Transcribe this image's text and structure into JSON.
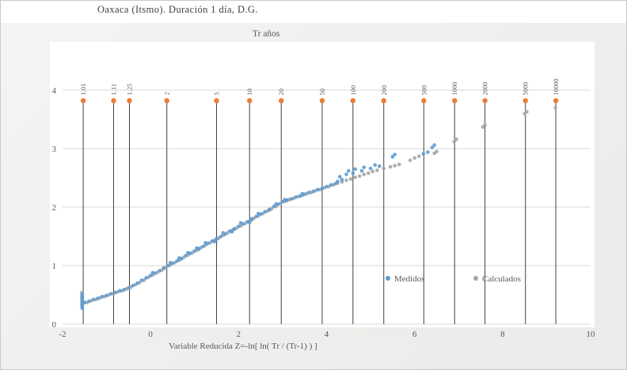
{
  "chart_data": {
    "type": "scatter",
    "title": "Oaxaca (Itsmo). Duración 1 día, D.G.",
    "top_axis_title": "Tr años",
    "xlabel": "Variable Reducida  Z=-ln[ ln( Tr / (Tr-1) ) ]",
    "ylabel": "",
    "xlim": [
      -2,
      10
    ],
    "ylim": [
      0,
      4
    ],
    "x_ticks": [
      -2,
      0,
      2,
      4,
      6,
      8,
      10
    ],
    "y_ticks": [
      0,
      1,
      2,
      3,
      4
    ],
    "grid": "horizontal",
    "legend_position": "inside-lower-right",
    "colors": {
      "medidos": "#5b9bd5",
      "calculados": "#a5a5a5",
      "tr_marker": "#ed7d31",
      "tr_line": "#404040",
      "grid": "#d9d9d9",
      "tick_text": "#595959",
      "plot_bg": "#ffffff"
    },
    "tr_marker_y": 3.82,
    "tr_lines": [
      {
        "label": "1.01",
        "z": -1.53
      },
      {
        "label": "1.11",
        "z": -0.84
      },
      {
        "label": "1.25",
        "z": -0.48
      },
      {
        "label": "2",
        "z": 0.37
      },
      {
        "label": "5",
        "z": 1.5
      },
      {
        "label": "10",
        "z": 2.25
      },
      {
        "label": "20",
        "z": 2.97
      },
      {
        "label": "50",
        "z": 3.9
      },
      {
        "label": "100",
        "z": 4.6
      },
      {
        "label": "200",
        "z": 5.3
      },
      {
        "label": "500",
        "z": 6.21
      },
      {
        "label": "1000",
        "z": 6.91
      },
      {
        "label": "2000",
        "z": 7.6
      },
      {
        "label": "5000",
        "z": 8.52
      },
      {
        "label": "10000",
        "z": 9.21
      }
    ],
    "series": [
      {
        "name": "Medidos",
        "color": "#5b9bd5",
        "points": [
          [
            -1.55,
            0.27
          ],
          [
            -1.55,
            0.31
          ],
          [
            -1.55,
            0.35
          ],
          [
            -1.55,
            0.39
          ],
          [
            -1.55,
            0.43
          ],
          [
            -1.55,
            0.47
          ],
          [
            -1.55,
            0.51
          ],
          [
            -1.5,
            0.37
          ],
          [
            -1.4,
            0.39
          ],
          [
            -1.3,
            0.42
          ],
          [
            -1.2,
            0.44
          ],
          [
            -1.1,
            0.47
          ],
          [
            -1.0,
            0.49
          ],
          [
            -0.9,
            0.52
          ],
          [
            -0.8,
            0.54
          ],
          [
            -0.7,
            0.57
          ],
          [
            -0.6,
            0.59
          ],
          [
            -0.5,
            0.62
          ],
          [
            -0.4,
            0.66
          ],
          [
            -0.3,
            0.7
          ],
          [
            -0.2,
            0.75
          ],
          [
            -0.1,
            0.79
          ],
          [
            0.0,
            0.83
          ],
          [
            0.1,
            0.87
          ],
          [
            0.2,
            0.91
          ],
          [
            0.3,
            0.96
          ],
          [
            0.4,
            1.0
          ],
          [
            0.5,
            1.04
          ],
          [
            0.6,
            1.08
          ],
          [
            0.7,
            1.12
          ],
          [
            0.8,
            1.17
          ],
          [
            0.9,
            1.21
          ],
          [
            1.0,
            1.25
          ],
          [
            1.1,
            1.29
          ],
          [
            1.2,
            1.33
          ],
          [
            1.3,
            1.38
          ],
          [
            1.4,
            1.42
          ],
          [
            1.5,
            1.46
          ],
          [
            1.6,
            1.5
          ],
          [
            1.7,
            1.54
          ],
          [
            1.8,
            1.59
          ],
          [
            1.9,
            1.63
          ],
          [
            2.0,
            1.67
          ],
          [
            2.1,
            1.71
          ],
          [
            2.2,
            1.75
          ],
          [
            2.3,
            1.8
          ],
          [
            2.4,
            1.84
          ],
          [
            2.5,
            1.88
          ],
          [
            2.6,
            1.92
          ],
          [
            2.7,
            1.96
          ],
          [
            2.8,
            2.01
          ],
          [
            2.9,
            2.05
          ],
          [
            3.0,
            2.09
          ],
          [
            3.1,
            2.12
          ],
          [
            3.2,
            2.14
          ],
          [
            3.3,
            2.17
          ],
          [
            3.4,
            2.19
          ],
          [
            3.5,
            2.22
          ],
          [
            3.6,
            2.25
          ],
          [
            3.7,
            2.27
          ],
          [
            3.8,
            2.3
          ],
          [
            3.9,
            2.32
          ],
          [
            4.0,
            2.35
          ],
          [
            4.1,
            2.38
          ],
          [
            4.2,
            2.4
          ],
          [
            0.05,
            0.88
          ],
          [
            0.45,
            1.05
          ],
          [
            0.85,
            1.22
          ],
          [
            1.25,
            1.39
          ],
          [
            1.65,
            1.56
          ],
          [
            2.05,
            1.73
          ],
          [
            2.45,
            1.89
          ],
          [
            2.85,
            2.05
          ],
          [
            1.45,
            1.41
          ],
          [
            1.85,
            1.58
          ],
          [
            2.25,
            1.74
          ],
          [
            0.65,
            1.13
          ],
          [
            1.05,
            1.3
          ],
          [
            3.05,
            2.13
          ],
          [
            3.45,
            2.23
          ],
          [
            4.25,
            2.44
          ],
          [
            4.3,
            2.52
          ],
          [
            4.35,
            2.47
          ],
          [
            4.45,
            2.56
          ],
          [
            4.5,
            2.62
          ],
          [
            4.6,
            2.58
          ],
          [
            4.65,
            2.65
          ],
          [
            4.8,
            2.62
          ],
          [
            4.85,
            2.68
          ],
          [
            5.0,
            2.66
          ],
          [
            5.1,
            2.72
          ],
          [
            5.2,
            2.7
          ],
          [
            5.5,
            2.86
          ],
          [
            5.55,
            2.9
          ],
          [
            6.2,
            2.91
          ],
          [
            6.3,
            2.94
          ],
          [
            6.4,
            3.02
          ],
          [
            6.45,
            3.06
          ]
        ]
      },
      {
        "name": "Calculados",
        "color": "#a5a5a5",
        "points": [
          [
            -1.56,
            0.3
          ],
          [
            -1.56,
            0.34
          ],
          [
            -1.56,
            0.38
          ],
          [
            -1.56,
            0.42
          ],
          [
            -1.56,
            0.46
          ],
          [
            -1.56,
            0.5
          ],
          [
            -1.56,
            0.54
          ],
          [
            -1.45,
            0.37
          ],
          [
            -1.35,
            0.4
          ],
          [
            -1.25,
            0.42
          ],
          [
            -1.15,
            0.45
          ],
          [
            -1.05,
            0.47
          ],
          [
            -0.95,
            0.5
          ],
          [
            -0.85,
            0.52
          ],
          [
            -0.75,
            0.55
          ],
          [
            -0.65,
            0.57
          ],
          [
            -0.55,
            0.6
          ],
          [
            -0.45,
            0.63
          ],
          [
            -0.35,
            0.67
          ],
          [
            -0.25,
            0.71
          ],
          [
            -0.15,
            0.75
          ],
          [
            -0.05,
            0.8
          ],
          [
            0.05,
            0.84
          ],
          [
            0.15,
            0.88
          ],
          [
            0.25,
            0.92
          ],
          [
            0.35,
            0.97
          ],
          [
            0.45,
            1.01
          ],
          [
            0.55,
            1.05
          ],
          [
            0.65,
            1.09
          ],
          [
            0.75,
            1.14
          ],
          [
            0.85,
            1.18
          ],
          [
            0.95,
            1.22
          ],
          [
            1.05,
            1.26
          ],
          [
            1.15,
            1.31
          ],
          [
            1.25,
            1.35
          ],
          [
            1.35,
            1.39
          ],
          [
            1.45,
            1.43
          ],
          [
            1.55,
            1.47
          ],
          [
            1.65,
            1.52
          ],
          [
            1.75,
            1.56
          ],
          [
            1.85,
            1.6
          ],
          [
            1.95,
            1.64
          ],
          [
            2.05,
            1.68
          ],
          [
            2.15,
            1.72
          ],
          [
            2.25,
            1.76
          ],
          [
            2.35,
            1.81
          ],
          [
            2.45,
            1.85
          ],
          [
            2.55,
            1.89
          ],
          [
            2.65,
            1.93
          ],
          [
            2.75,
            1.97
          ],
          [
            2.85,
            2.01
          ],
          [
            2.95,
            2.06
          ],
          [
            3.05,
            2.1
          ],
          [
            3.15,
            2.13
          ],
          [
            3.25,
            2.15
          ],
          [
            3.35,
            2.18
          ],
          [
            3.45,
            2.2
          ],
          [
            3.55,
            2.23
          ],
          [
            3.65,
            2.25
          ],
          [
            3.75,
            2.28
          ],
          [
            3.85,
            2.3
          ],
          [
            3.95,
            2.33
          ],
          [
            4.05,
            2.35
          ],
          [
            4.15,
            2.38
          ],
          [
            0.3,
            0.95
          ],
          [
            0.7,
            1.12
          ],
          [
            1.1,
            1.28
          ],
          [
            1.5,
            1.45
          ],
          [
            1.9,
            1.62
          ],
          [
            2.3,
            1.78
          ],
          [
            2.7,
            1.95
          ],
          [
            3.1,
            2.11
          ],
          [
            4.25,
            2.41
          ],
          [
            4.35,
            2.43
          ],
          [
            4.45,
            2.46
          ],
          [
            4.55,
            2.48
          ],
          [
            4.65,
            2.51
          ],
          [
            4.75,
            2.53
          ],
          [
            4.85,
            2.56
          ],
          [
            4.95,
            2.58
          ],
          [
            5.05,
            2.61
          ],
          [
            5.15,
            2.63
          ],
          [
            5.3,
            2.66
          ],
          [
            5.45,
            2.69
          ],
          [
            5.55,
            2.71
          ],
          [
            5.65,
            2.73
          ],
          [
            5.9,
            2.8
          ],
          [
            6.0,
            2.84
          ],
          [
            6.1,
            2.87
          ],
          [
            6.45,
            2.92
          ],
          [
            6.5,
            2.95
          ],
          [
            6.9,
            3.12
          ],
          [
            6.95,
            3.16
          ],
          [
            7.55,
            3.37
          ],
          [
            7.6,
            3.4
          ],
          [
            8.5,
            3.6
          ],
          [
            8.55,
            3.63
          ],
          [
            9.2,
            3.7
          ]
        ]
      }
    ]
  },
  "legend": {
    "medidos_label": "Medidos",
    "calculados_label": "Calculados"
  }
}
